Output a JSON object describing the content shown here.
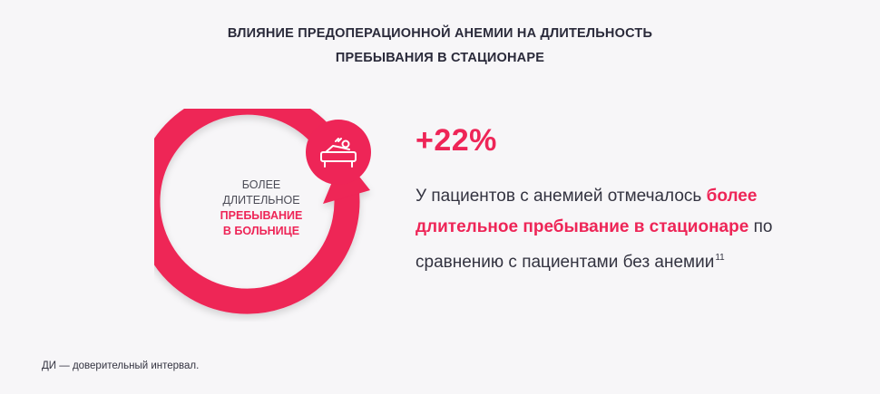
{
  "title": {
    "line1": "ВЛИЯНИЕ ПРЕДОПЕРАЦИОННОЙ АНЕМИИ НА ДЛИТЕЛЬНОСТЬ",
    "line2": "ПРЕБЫВАНИЯ В СТАЦИОНАРЕ"
  },
  "ring_label": {
    "line1": "Более",
    "line2": "длительное",
    "line3": "пребывание",
    "line4": "в больнице"
  },
  "badge_icon": "hospital-bed-patient-icon",
  "stat_value": "+22%",
  "description": {
    "text1": "У пациентов с анемией отмечалось ",
    "highlight": "более длительное пребывание в стационаре",
    "text2": " по сравнению с пациентами без анемии",
    "ref": "11"
  },
  "footnote": "ДИ — доверительный интервал.",
  "colors": {
    "accent": "#ee2557",
    "background": "#f7f6f8",
    "text": "#333340"
  }
}
